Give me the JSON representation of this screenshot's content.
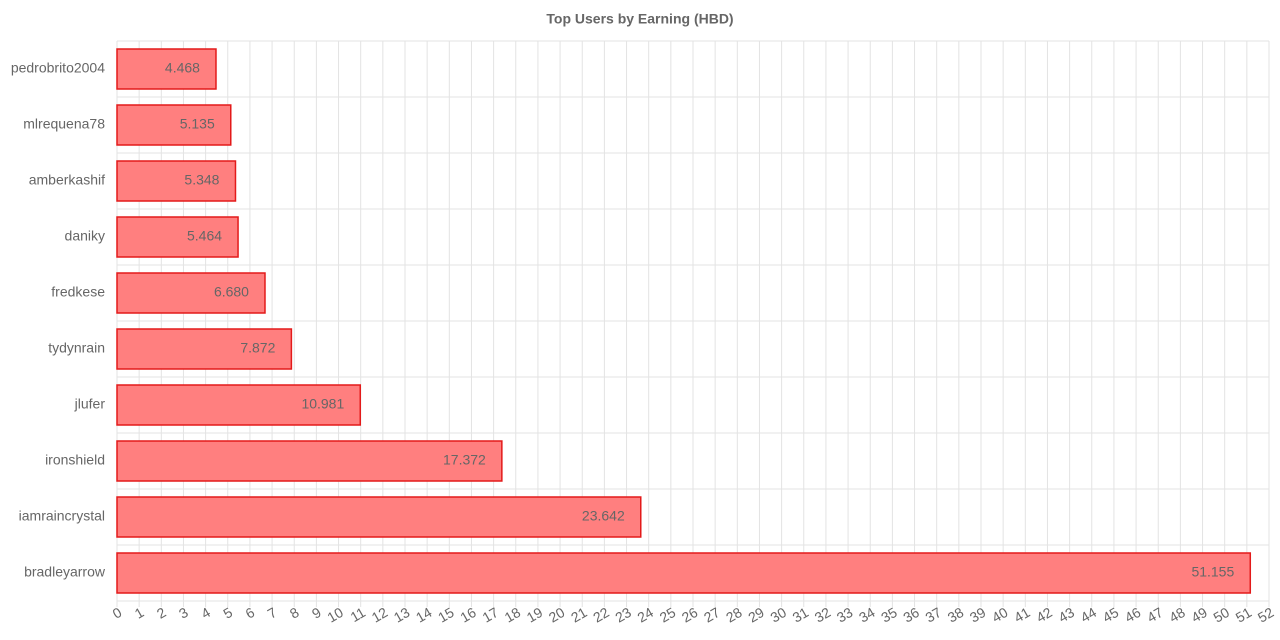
{
  "chart_data": {
    "type": "hbar",
    "title": "Top Users by Earning (HBD)",
    "categories": [
      "pedrobrito2004",
      "mlrequena78",
      "amberkashif",
      "daniky",
      "fredkese",
      "tydynrain",
      "jlufer",
      "ironshield",
      "iamraincrystal",
      "bradleyarrow"
    ],
    "values": [
      4.468,
      5.135,
      5.348,
      5.464,
      6.68,
      7.872,
      10.981,
      17.372,
      23.642,
      51.155
    ],
    "value_labels": [
      "4.468",
      "5.135",
      "5.348",
      "5.464",
      "6.680",
      "7.872",
      "10.981",
      "17.372",
      "23.642",
      "51.155"
    ],
    "color": "#ff7f7f",
    "border_color": "#e31a1a",
    "xlim": [
      0,
      52
    ],
    "xticks": [
      0,
      1,
      2,
      3,
      4,
      5,
      6,
      7,
      8,
      9,
      10,
      11,
      12,
      13,
      14,
      15,
      16,
      17,
      18,
      19,
      20,
      21,
      22,
      23,
      24,
      25,
      26,
      27,
      28,
      29,
      30,
      31,
      32,
      33,
      34,
      35,
      36,
      37,
      38,
      39,
      40,
      41,
      42,
      43,
      44,
      45,
      46,
      47,
      48,
      49,
      50,
      51,
      52
    ],
    "grid": true
  }
}
